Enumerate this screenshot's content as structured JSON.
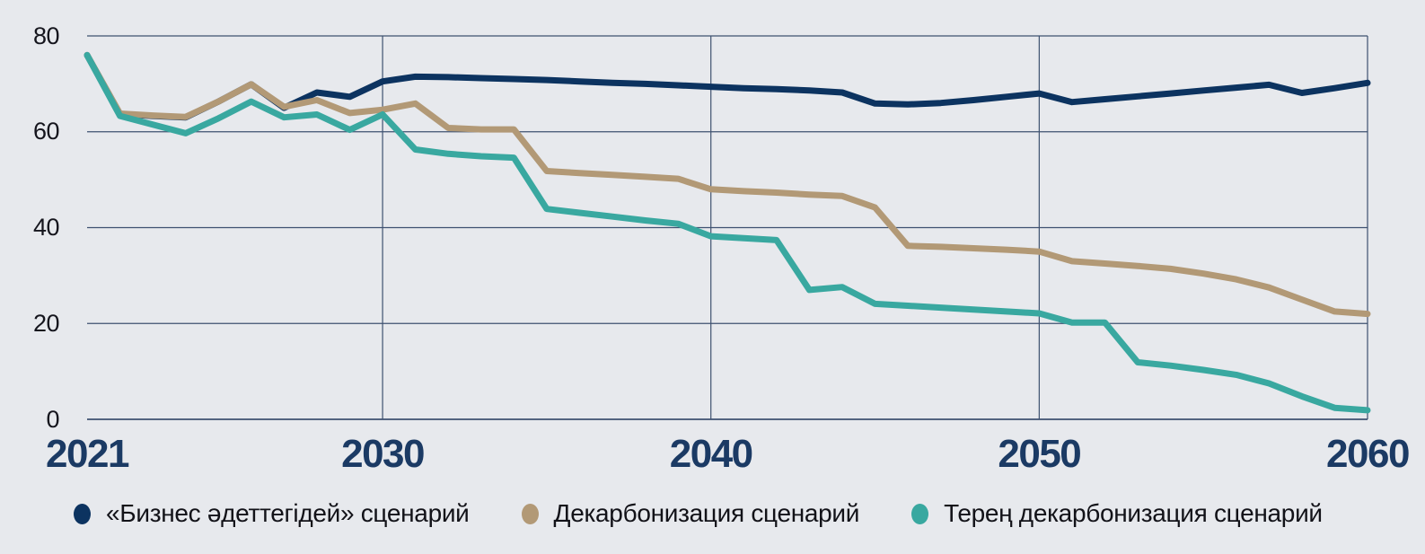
{
  "style": {
    "background": "#e7e9ed",
    "grid_color": "#3e5170",
    "axis_line_color": "#3e5170",
    "y_tick_color": "#15151d",
    "x_tick_color": "#1b3a64",
    "legend_text_color": "#121218"
  },
  "chart_data": {
    "type": "line",
    "title": "",
    "xlabel": "",
    "ylabel": "",
    "grid": "on",
    "legend_position": "bottom",
    "xlim": [
      2021,
      2060
    ],
    "ylim": [
      0,
      80
    ],
    "x_tick_labels": [
      "2021",
      "2030",
      "2040",
      "2050",
      "2060"
    ],
    "y_tick_labels": [
      "0",
      "20",
      "40",
      "60",
      "80"
    ],
    "x": [
      2021,
      2022,
      2023,
      2024,
      2025,
      2026,
      2027,
      2028,
      2029,
      2030,
      2031,
      2032,
      2033,
      2034,
      2035,
      2036,
      2037,
      2038,
      2039,
      2040,
      2041,
      2042,
      2043,
      2044,
      2045,
      2046,
      2047,
      2048,
      2049,
      2050,
      2051,
      2052,
      2053,
      2054,
      2055,
      2056,
      2057,
      2058,
      2059,
      2060
    ],
    "series": [
      {
        "name": "«Бизнес әдеттегідей» сценарий",
        "color": "#0c3360",
        "values": [
          76,
          63.7,
          63.3,
          63.0,
          66.3,
          69.9,
          65.0,
          68.2,
          67.3,
          70.5,
          71.5,
          71.4,
          71.2,
          71.0,
          70.8,
          70.5,
          70.2,
          70.0,
          69.7,
          69.4,
          69.1,
          68.9,
          68.6,
          68.2,
          65.9,
          65.7,
          66.0,
          66.6,
          67.3,
          68.0,
          66.2,
          66.8,
          67.4,
          68.0,
          68.6,
          69.2,
          69.8,
          68.1,
          69.1,
          70.2
        ]
      },
      {
        "name": "Декарбонизация сценарий",
        "color": "#b29976",
        "values": [
          76,
          63.8,
          63.4,
          63.1,
          66.3,
          69.9,
          65.2,
          66.6,
          63.9,
          64.6,
          65.9,
          60.8,
          60.5,
          60.5,
          51.8,
          51.4,
          51.0,
          50.6,
          50.2,
          48.0,
          47.6,
          47.3,
          46.9,
          46.6,
          44.2,
          36.2,
          36.0,
          35.7,
          35.4,
          35.0,
          33.0,
          32.5,
          32.0,
          31.4,
          30.4,
          29.2,
          27.5,
          25.0,
          22.5,
          22.0
        ]
      },
      {
        "name": "Терең декарбонизация сценарий",
        "color": "#39a8a0",
        "values": [
          76,
          63.3,
          61.5,
          59.7,
          62.8,
          66.3,
          63.0,
          63.6,
          60.4,
          63.6,
          56.3,
          55.4,
          54.9,
          54.6,
          43.9,
          43.1,
          42.3,
          41.5,
          40.8,
          38.2,
          37.8,
          37.4,
          27.0,
          27.6,
          24.1,
          23.7,
          23.3,
          22.9,
          22.5,
          22.1,
          20.2,
          20.2,
          11.9,
          11.2,
          10.3,
          9.3,
          7.5,
          4.8,
          2.4,
          1.9
        ]
      }
    ]
  }
}
